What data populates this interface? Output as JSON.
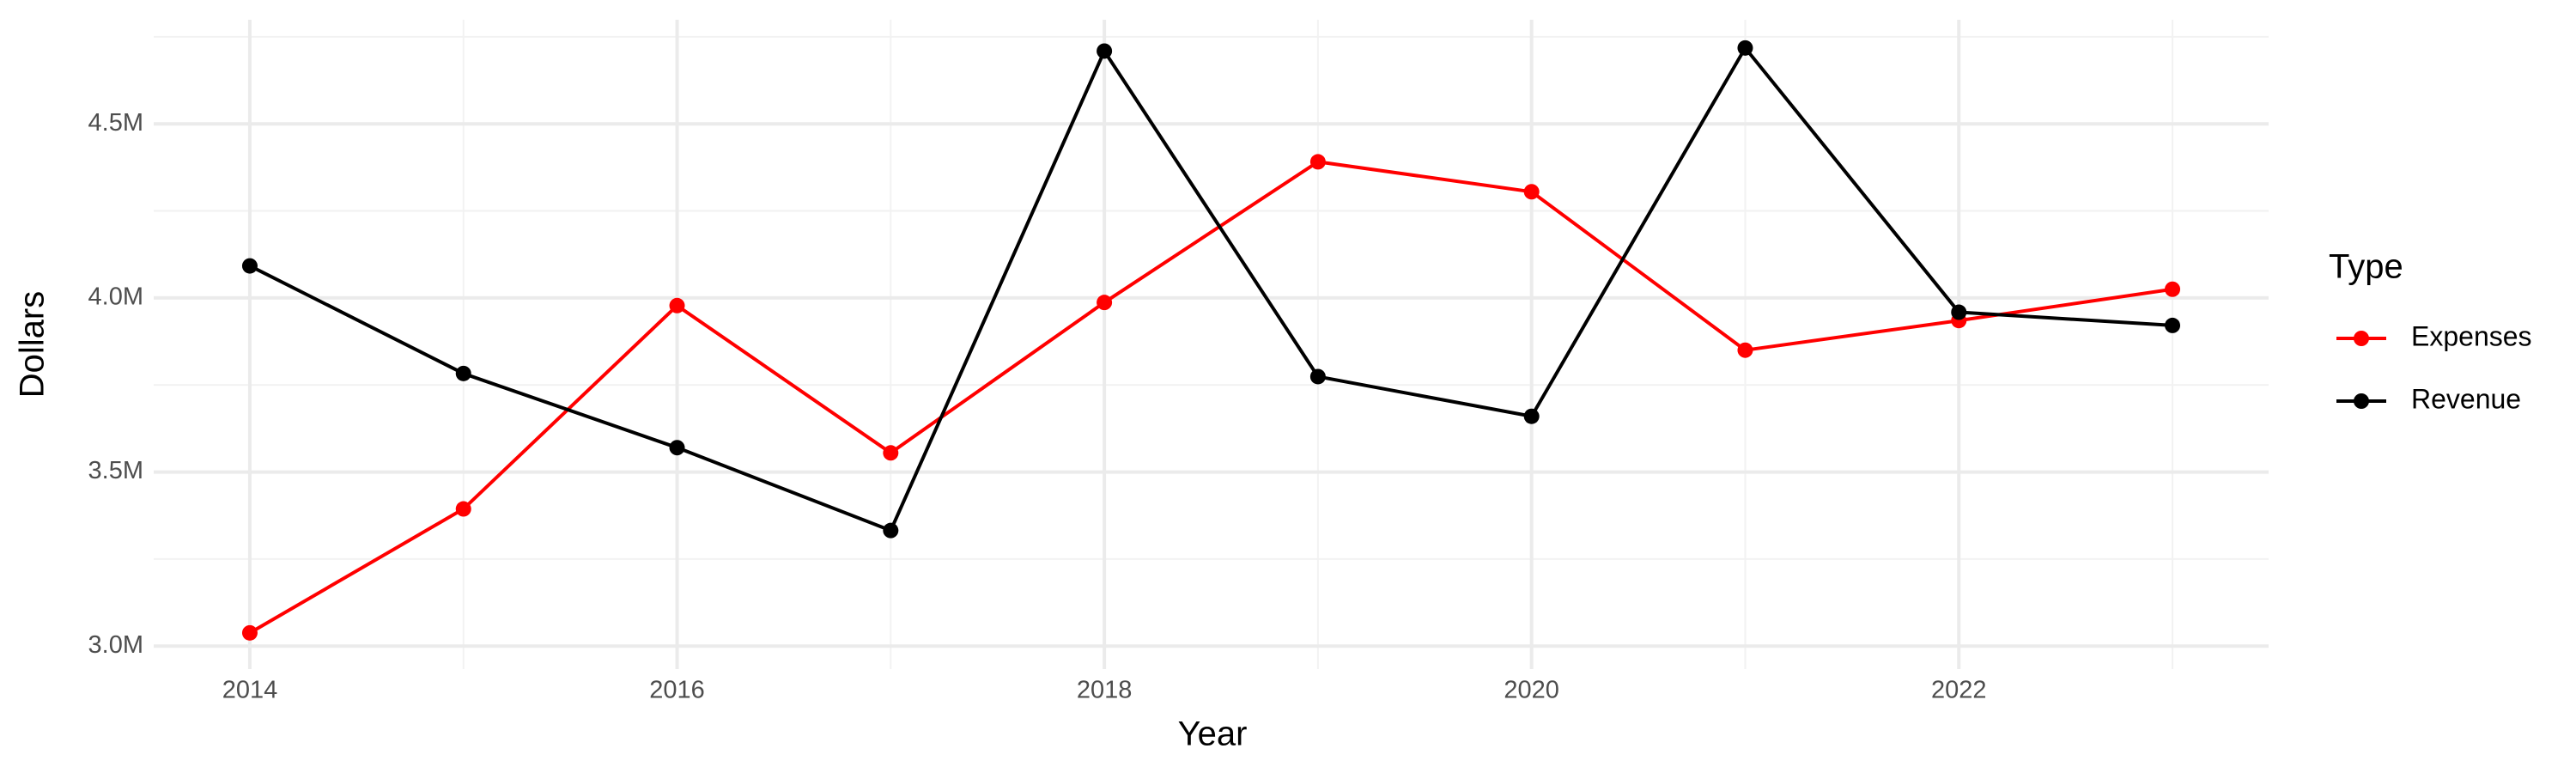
{
  "chart_data": {
    "type": "line",
    "x_label": "Year",
    "y_label": "Dollars",
    "legend_title": "Type",
    "legend_position": "right",
    "grid": true,
    "x": [
      2014,
      2015,
      2016,
      2017,
      2018,
      2019,
      2020,
      2021,
      2022,
      2023
    ],
    "series": [
      {
        "name": "Expenses",
        "color": "#ff0000",
        "values": [
          3038000,
          3394000,
          3978000,
          3555000,
          3987000,
          4391000,
          4305000,
          3850000,
          3935000,
          4025000
        ]
      },
      {
        "name": "Revenue",
        "color": "#000000",
        "values": [
          4092000,
          3783000,
          3570000,
          3332000,
          4709000,
          3774000,
          3660000,
          4718000,
          3959000,
          3921000
        ]
      }
    ],
    "xlim": [
      2013.55,
      2023.45
    ],
    "xticks": [
      2014,
      2016,
      2018,
      2020,
      2022
    ],
    "ylim": [
      2934000,
      4799000
    ],
    "yticks": [
      {
        "value": 3000000,
        "label": "3.0M"
      },
      {
        "value": 3500000,
        "label": "3.5M"
      },
      {
        "value": 4000000,
        "label": "4.0M"
      },
      {
        "value": 4500000,
        "label": "4.5M"
      }
    ]
  }
}
